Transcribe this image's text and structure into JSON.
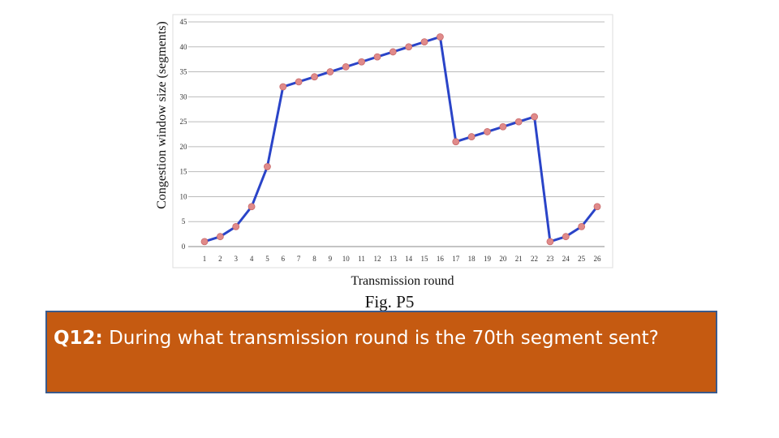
{
  "chart_data": {
    "type": "line",
    "xlabel": "Transmission round",
    "ylabel": "Congestion window size (segments)",
    "caption": "Fig. P5",
    "x": [
      1,
      2,
      3,
      4,
      5,
      6,
      7,
      8,
      9,
      10,
      11,
      12,
      13,
      14,
      15,
      16,
      17,
      18,
      19,
      20,
      21,
      22,
      23,
      24,
      25,
      26
    ],
    "y": [
      1,
      2,
      4,
      8,
      16,
      32,
      33,
      34,
      35,
      36,
      37,
      38,
      39,
      40,
      41,
      42,
      21,
      22,
      23,
      24,
      25,
      26,
      1,
      2,
      4,
      8
    ],
    "xlim": [
      1,
      26
    ],
    "ylim": [
      0,
      45
    ],
    "yticks": [
      0,
      5,
      10,
      15,
      20,
      25,
      30,
      35,
      40,
      45
    ],
    "grid": true,
    "line_color": "#2a44c8",
    "marker_color": "#e08a8a"
  },
  "question": {
    "label": "Q12:",
    "text": " During what transmission round is the 70th segment sent?"
  }
}
